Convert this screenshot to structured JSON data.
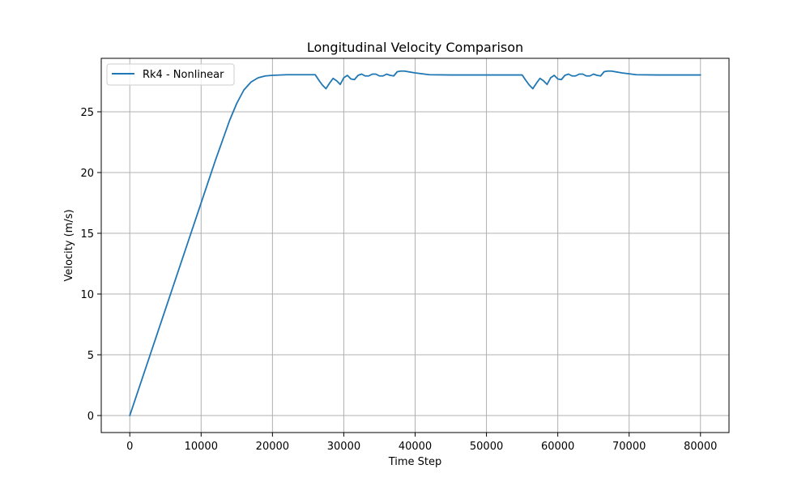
{
  "colors": {
    "series": "#1f77b4",
    "grid": "#b0b0b0",
    "axes": "#000000",
    "background": "#ffffff"
  },
  "chart_data": {
    "type": "line",
    "title": "Longitudinal Velocity Comparison",
    "xlabel": "Time Step",
    "ylabel": "Velocity (m/s)",
    "xlim": [
      -4000,
      84000
    ],
    "ylim": [
      -1.4,
      29.4
    ],
    "xticks": [
      0,
      10000,
      20000,
      30000,
      40000,
      50000,
      60000,
      70000,
      80000
    ],
    "xtick_labels": [
      "0",
      "10000",
      "20000",
      "30000",
      "40000",
      "50000",
      "60000",
      "70000",
      "80000"
    ],
    "yticks": [
      0,
      5,
      10,
      15,
      20,
      25
    ],
    "ytick_labels": [
      "0",
      "5",
      "10",
      "15",
      "20",
      "25"
    ],
    "grid": true,
    "legend_position": "top-left",
    "series": [
      {
        "name": "Rk4 - Nonlinear",
        "color": "#1f77b4",
        "x": [
          0,
          2000,
          4000,
          6000,
          8000,
          10000,
          12000,
          14000,
          15000,
          16000,
          17000,
          18000,
          19000,
          20000,
          22000,
          24000,
          26000,
          26500,
          27000,
          27500,
          28000,
          28500,
          29000,
          29500,
          30000,
          30500,
          31000,
          31500,
          32000,
          32500,
          33000,
          33500,
          34000,
          34500,
          35000,
          35500,
          36000,
          36500,
          37000,
          37500,
          38000,
          38500,
          39000,
          40000,
          42000,
          45000,
          50000,
          55000,
          55500,
          56000,
          56500,
          57000,
          57500,
          58000,
          58500,
          59000,
          59500,
          60000,
          60500,
          61000,
          61500,
          62000,
          62500,
          63000,
          63500,
          64000,
          64500,
          65000,
          65500,
          66000,
          66500,
          67000,
          67500,
          68000,
          69000,
          71000,
          74000,
          77000,
          80000
        ],
        "y": [
          0,
          3.5,
          7,
          10.5,
          14,
          17.5,
          21,
          24.3,
          25.7,
          26.8,
          27.45,
          27.8,
          27.95,
          28.0,
          28.05,
          28.05,
          28.05,
          27.6,
          27.2,
          26.9,
          27.35,
          27.75,
          27.55,
          27.25,
          27.8,
          28.0,
          27.7,
          27.65,
          28.0,
          28.1,
          27.95,
          27.95,
          28.1,
          28.1,
          27.95,
          27.95,
          28.1,
          28.0,
          27.95,
          28.3,
          28.35,
          28.35,
          28.3,
          28.2,
          28.05,
          28.03,
          28.03,
          28.03,
          27.6,
          27.2,
          26.9,
          27.35,
          27.75,
          27.55,
          27.25,
          27.8,
          28.0,
          27.7,
          27.65,
          28.0,
          28.1,
          27.95,
          27.95,
          28.1,
          28.1,
          27.95,
          27.95,
          28.1,
          28.0,
          27.95,
          28.3,
          28.35,
          28.35,
          28.3,
          28.2,
          28.05,
          28.03,
          28.03,
          28.03
        ]
      }
    ]
  }
}
